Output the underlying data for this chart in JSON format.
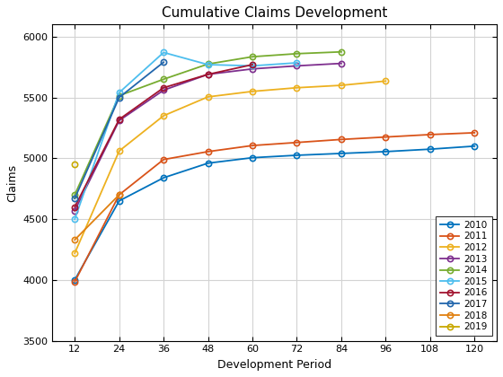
{
  "title": "Cumulative Claims Development",
  "xlabel": "Development Period",
  "ylabel": "Claims",
  "xlim": [
    6,
    126
  ],
  "ylim": [
    3500,
    6100
  ],
  "xticks": [
    12,
    24,
    36,
    48,
    60,
    72,
    84,
    96,
    108,
    120
  ],
  "yticks": [
    3500,
    4000,
    4500,
    5000,
    5500,
    6000
  ],
  "series": [
    {
      "label": "2010",
      "color": "#0072BD",
      "x": [
        12,
        24,
        36,
        48,
        60,
        72,
        84,
        96,
        108,
        120
      ],
      "y": [
        4000,
        4650,
        4840,
        4960,
        5005,
        5025,
        5040,
        5055,
        5075,
        5100
      ]
    },
    {
      "label": "2011",
      "color": "#D95319",
      "x": [
        12,
        24,
        36,
        48,
        60,
        72,
        84,
        96,
        108,
        120
      ],
      "y": [
        3985,
        4700,
        4990,
        5055,
        5105,
        5130,
        5155,
        5175,
        5195,
        5210
      ]
    },
    {
      "label": "2012",
      "color": "#EDB120",
      "x": [
        12,
        24,
        36,
        48,
        60,
        72,
        84,
        96
      ],
      "y": [
        4220,
        5060,
        5350,
        5505,
        5550,
        5580,
        5600,
        5635
      ]
    },
    {
      "label": "2013",
      "color": "#7E2F8E",
      "x": [
        12,
        24,
        36,
        48,
        60,
        72,
        84
      ],
      "y": [
        4570,
        5310,
        5560,
        5690,
        5735,
        5760,
        5780
      ]
    },
    {
      "label": "2014",
      "color": "#77AC30",
      "x": [
        12,
        24,
        36,
        48,
        60,
        72,
        84
      ],
      "y": [
        4700,
        5515,
        5650,
        5775,
        5835,
        5860,
        5875
      ]
    },
    {
      "label": "2015",
      "color": "#4DBEEE",
      "x": [
        12,
        24,
        36,
        48,
        60,
        72
      ],
      "y": [
        4500,
        5540,
        5870,
        5770,
        5760,
        5785
      ]
    },
    {
      "label": "2016",
      "color": "#A2142F",
      "x": [
        12,
        24,
        36,
        48,
        60
      ],
      "y": [
        4600,
        5320,
        5580,
        5690,
        5770
      ]
    },
    {
      "label": "2017",
      "color": "#2166ac",
      "x": [
        12,
        24,
        36
      ],
      "y": [
        4670,
        5500,
        5790
      ]
    },
    {
      "label": "2018",
      "color": "#e08010",
      "x": [
        12,
        24
      ],
      "y": [
        4330,
        4700
      ]
    },
    {
      "label": "2019",
      "color": "#c8a800",
      "x": [
        12
      ],
      "y": [
        4950
      ]
    }
  ]
}
